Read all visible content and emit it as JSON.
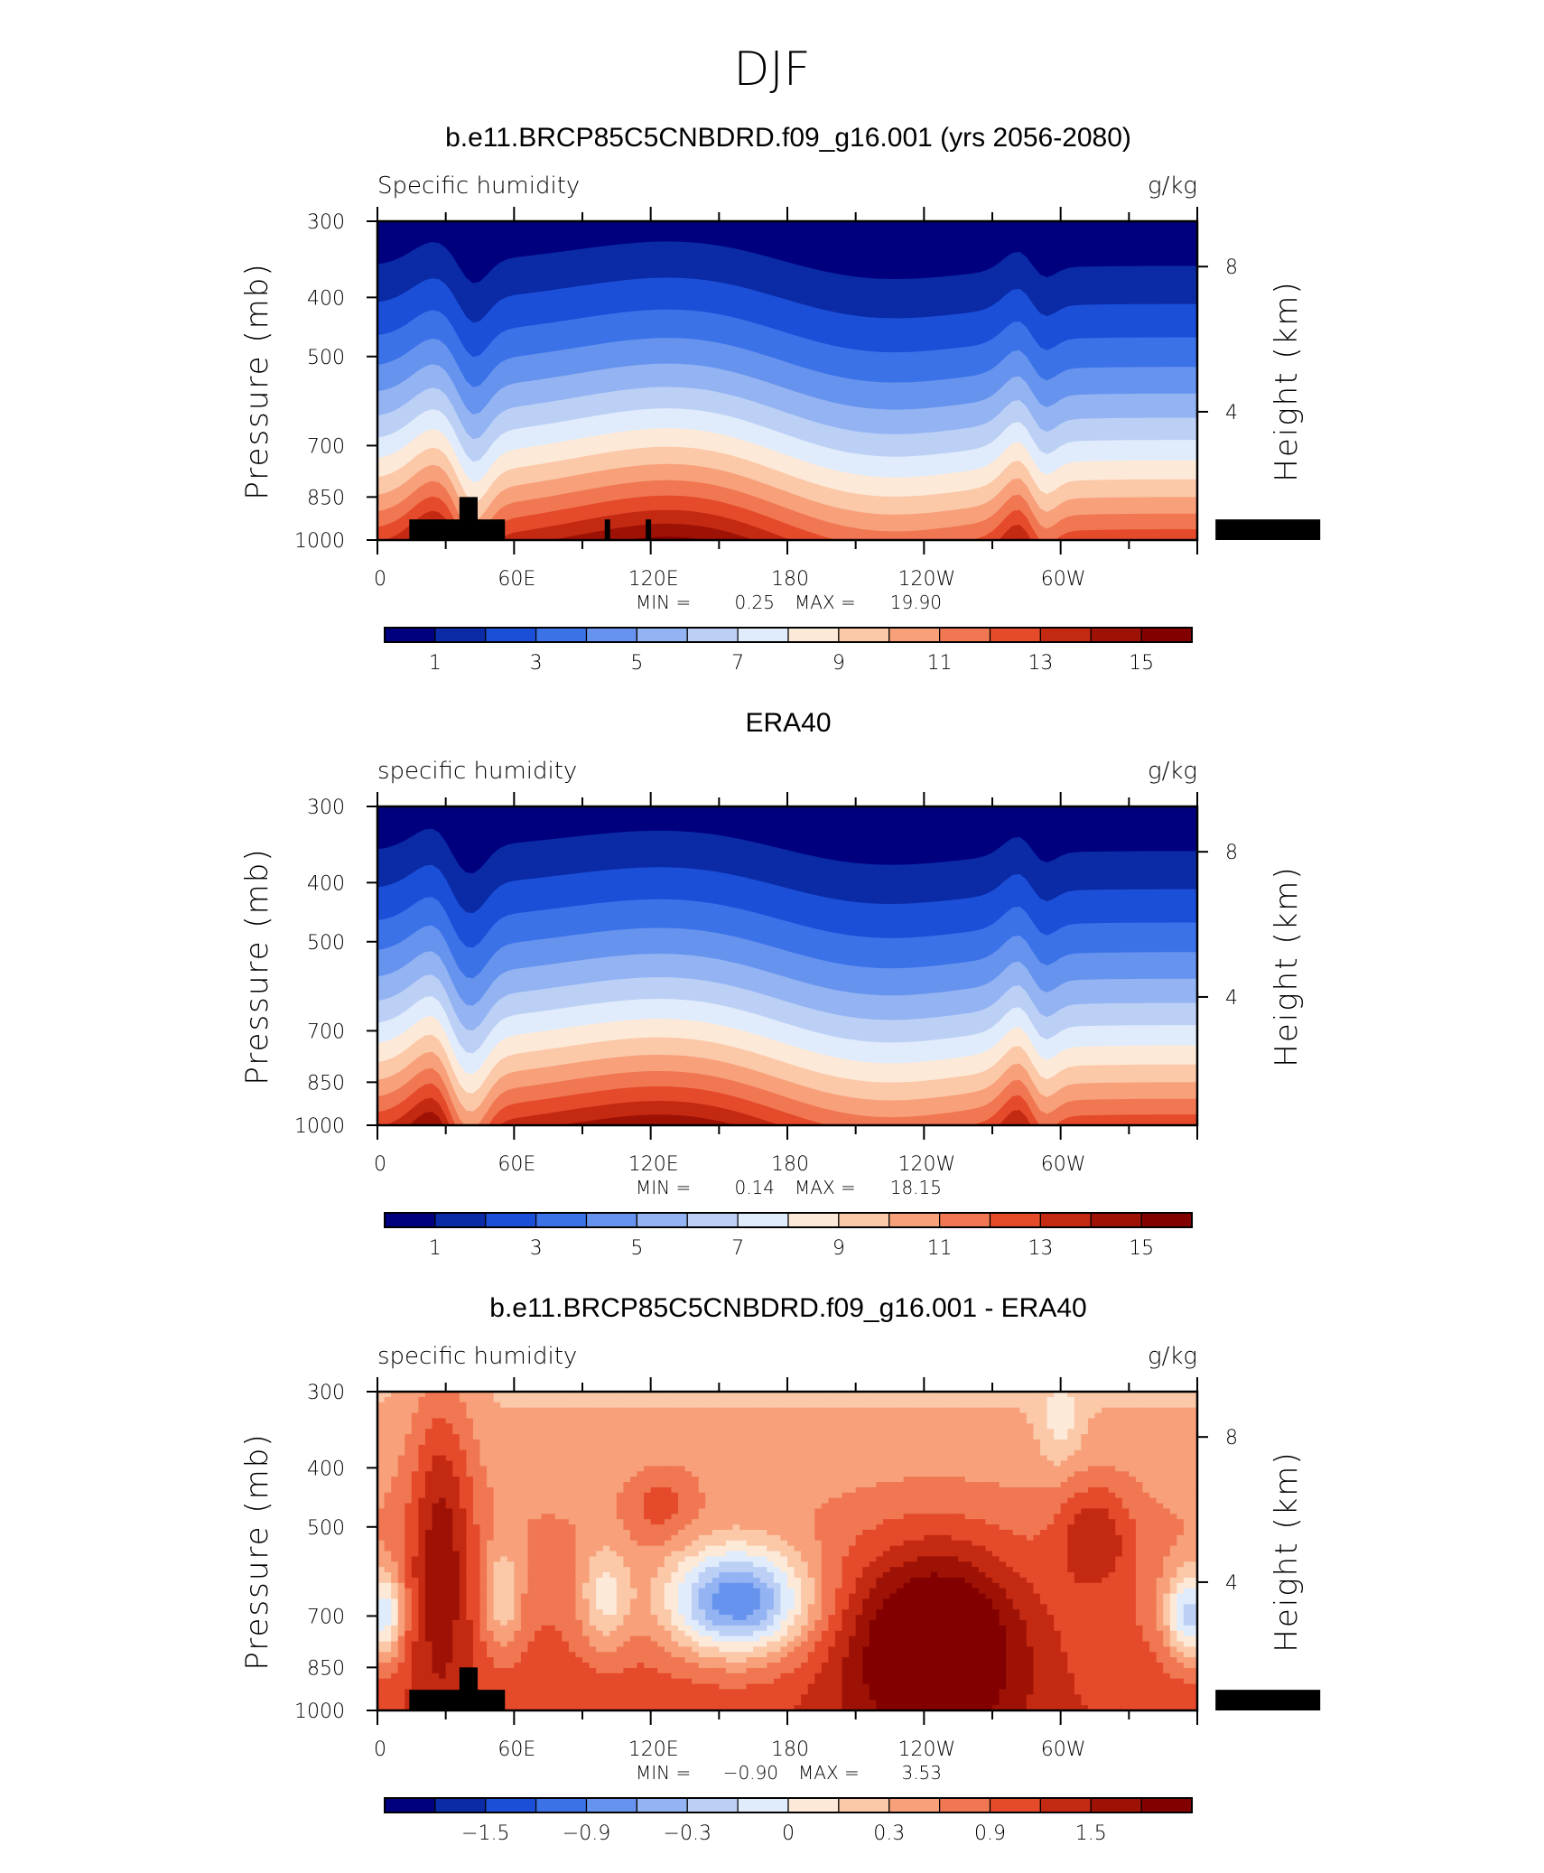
{
  "figure_title": "DJF",
  "panels": [
    {
      "title": "b.e11.BRCP85C5CNBDRD.f09_g16.001 (yrs 2056-2080)",
      "left_label": "Specific humidity",
      "right_label": "g/kg",
      "min_label": "MIN =",
      "min_value": "0.25",
      "max_label": "MAX =",
      "max_value": "19.90",
      "colorbar_labels": [
        "1",
        "3",
        "5",
        "7",
        "9",
        "11",
        "13",
        "15"
      ]
    },
    {
      "title": "ERA40",
      "left_label": "specific humidity",
      "right_label": "g/kg",
      "min_label": "MIN =",
      "min_value": "0.14",
      "max_label": "MAX =",
      "max_value": "18.15",
      "colorbar_labels": [
        "1",
        "3",
        "5",
        "7",
        "9",
        "11",
        "13",
        "15"
      ]
    },
    {
      "title": "b.e11.BRCP85C5CNBDRD.f09_g16.001 - ERA40",
      "left_label": "specific humidity",
      "right_label": "g/kg",
      "min_label": "MIN =",
      "min_value": "−0.90",
      "max_label": "MAX =",
      "max_value": "3.53",
      "colorbar_labels": [
        "−1.5",
        "−0.9",
        "−0.3",
        "0",
        "0.3",
        "0.9",
        "1.5"
      ]
    }
  ],
  "axes": {
    "ylabel_left": "Pressure (mb)",
    "ylabel_right": "Height (km)",
    "pressure_ticks": [
      "300",
      "400",
      "500",
      "700",
      "850",
      "1000"
    ],
    "height_ticks": [
      "8",
      "4"
    ],
    "lon_ticks": [
      "0",
      "60E",
      "120E",
      "180",
      "120W",
      "60W"
    ]
  },
  "colors": {
    "palette": [
      "#00007f",
      "#0a2aa6",
      "#1b4fd8",
      "#3b72e8",
      "#6693ee",
      "#93b3f2",
      "#bcd0f6",
      "#e0ecfb",
      "#fde9d8",
      "#fbc8a8",
      "#f7a07a",
      "#f07752",
      "#e54a2a",
      "#c42a12",
      "#9e1206",
      "#830000"
    ],
    "terrain": "#000000"
  },
  "chart_data": [
    {
      "type": "heatmap",
      "title": "b.e11.BRCP85C5CNBDRD.f09_g16.001 (yrs 2056-2080)",
      "variable": "Specific humidity",
      "units": "g/kg",
      "x": [
        0,
        60,
        120,
        180,
        240,
        300
      ],
      "x_labels": [
        "0",
        "60E",
        "120E",
        "180",
        "120W",
        "60W"
      ],
      "xlim": [
        0,
        360
      ],
      "y": [
        300,
        400,
        500,
        700,
        850,
        1000
      ],
      "ylim": [
        1000,
        300
      ],
      "ylabel": "Pressure (mb)",
      "y2label": "Height (km)",
      "y2_ticks": [
        8,
        4
      ],
      "min": 0.25,
      "max": 19.9,
      "contour_levels": [
        0,
        1,
        2,
        3,
        4,
        5,
        6,
        7,
        8,
        9,
        10,
        11,
        12,
        13,
        14,
        15
      ],
      "colorbar_labels": [
        1,
        3,
        5,
        7,
        9,
        11,
        13,
        15
      ],
      "surface_level_mb_by_lon": {
        "0": 985,
        "10": 950,
        "20": 920,
        "30": 900,
        "40": 960,
        "60": 990,
        "100": 990,
        "120": 985,
        "180": 990,
        "240": 990,
        "280": 945,
        "295": 930,
        "310": 960,
        "330": 985
      }
    },
    {
      "type": "heatmap",
      "title": "ERA40",
      "variable": "specific humidity",
      "units": "g/kg",
      "x": [
        0,
        60,
        120,
        180,
        240,
        300
      ],
      "x_labels": [
        "0",
        "60E",
        "120E",
        "180",
        "120W",
        "60W"
      ],
      "xlim": [
        0,
        360
      ],
      "y": [
        300,
        400,
        500,
        700,
        850,
        1000
      ],
      "ylim": [
        1000,
        300
      ],
      "ylabel": "Pressure (mb)",
      "y2label": "Height (km)",
      "y2_ticks": [
        8,
        4
      ],
      "min": 0.14,
      "max": 18.15,
      "contour_levels": [
        0,
        1,
        2,
        3,
        4,
        5,
        6,
        7,
        8,
        9,
        10,
        11,
        12,
        13,
        14,
        15
      ],
      "colorbar_labels": [
        1,
        3,
        5,
        7,
        9,
        11,
        13,
        15
      ],
      "surface_level_mb_by_lon": {
        "0": 985,
        "10": 950,
        "20": 920,
        "30": 900,
        "40": 960,
        "60": 990,
        "100": 990,
        "120": 985,
        "180": 990,
        "240": 990,
        "280": 945,
        "295": 930,
        "310": 960,
        "330": 985
      }
    },
    {
      "type": "heatmap",
      "title": "b.e11.BRCP85C5CNBDRD.f09_g16.001 - ERA40",
      "variable": "specific humidity",
      "units": "g/kg",
      "x": [
        0,
        60,
        120,
        180,
        240,
        300
      ],
      "x_labels": [
        "0",
        "60E",
        "120E",
        "180",
        "120W",
        "60W"
      ],
      "xlim": [
        0,
        360
      ],
      "y": [
        300,
        400,
        500,
        700,
        850,
        1000
      ],
      "ylim": [
        1000,
        300
      ],
      "ylabel": "Pressure (mb)",
      "y2label": "Height (km)",
      "y2_ticks": [
        8,
        4
      ],
      "min": -0.9,
      "max": 3.53,
      "contour_levels": [
        -2.1,
        -1.8,
        -1.5,
        -1.2,
        -0.9,
        -0.6,
        -0.3,
        0,
        0.3,
        0.6,
        0.9,
        1.2,
        1.5,
        1.8,
        2.1
      ],
      "colorbar_labels": [
        -1.5,
        -0.9,
        -0.3,
        0,
        0.3,
        0.9,
        1.5
      ],
      "surface_level_mb_by_lon": {
        "0": 985,
        "10": 950,
        "20": 920,
        "30": 900,
        "40": 960,
        "60": 990,
        "100": 990,
        "120": 985,
        "180": 990,
        "240": 990,
        "280": 945,
        "295": 930,
        "310": 960,
        "330": 985
      }
    }
  ]
}
